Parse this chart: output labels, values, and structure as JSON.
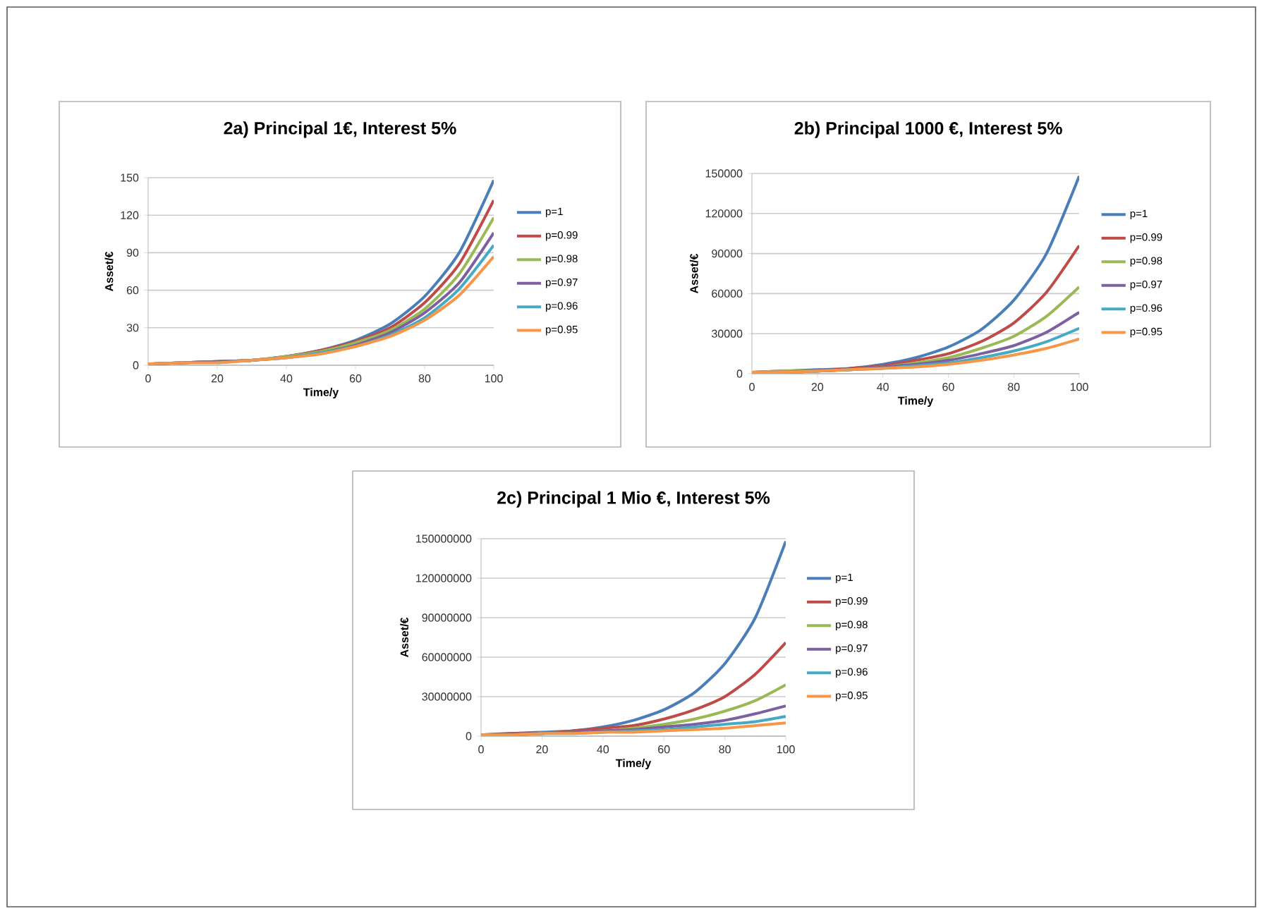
{
  "chart_data": [
    {
      "type": "line",
      "title": "2a) Principal 1€, Interest 5%",
      "xlabel": "Time/y",
      "ylabel": "Asset/€",
      "grid": "y",
      "legend": "right",
      "marker": "none",
      "line_style": "solid",
      "x": [
        0,
        10,
        20,
        30,
        40,
        50,
        60,
        70,
        80,
        90,
        100
      ],
      "xlim": [
        0,
        100
      ],
      "xticks": [
        0,
        20,
        40,
        60,
        80,
        100
      ],
      "ylim": [
        0,
        150
      ],
      "yticks": [
        0,
        30,
        60,
        90,
        120,
        150
      ],
      "series": [
        {
          "name": "p=1",
          "color": "#4a7ebb",
          "values": [
            1,
            2,
            3,
            4,
            7,
            12,
            20,
            33,
            55,
            90,
            148
          ]
        },
        {
          "name": "p=0.99",
          "color": "#be4b48",
          "values": [
            1,
            2,
            3,
            4,
            7,
            12,
            19,
            30,
            50,
            81,
            132
          ]
        },
        {
          "name": "p=0.98",
          "color": "#98b954",
          "values": [
            1,
            2,
            3,
            4,
            7,
            11,
            18,
            28,
            45,
            73,
            118
          ]
        },
        {
          "name": "p=0.97",
          "color": "#7d60a0",
          "values": [
            1,
            2,
            3,
            4,
            6,
            10,
            16,
            26,
            42,
            66,
            106
          ]
        },
        {
          "name": "p=0.96",
          "color": "#46aac5",
          "values": [
            null,
            null,
            2,
            4,
            6,
            10,
            15,
            24,
            38,
            61,
            96
          ]
        },
        {
          "name": "p=0.95",
          "color": "#f79646",
          "values": [
            1,
            2,
            2,
            4,
            6,
            9,
            15,
            23,
            36,
            56,
            87
          ]
        }
      ]
    },
    {
      "type": "line",
      "title": "2b) Principal 1000 €, Interest 5%",
      "xlabel": "Time/y",
      "ylabel": "Asset/€",
      "grid": "y",
      "legend": "right",
      "marker": "none",
      "line_style": "solid",
      "x": [
        0,
        10,
        20,
        30,
        40,
        50,
        60,
        70,
        80,
        90,
        100
      ],
      "xlim": [
        0,
        100
      ],
      "xticks": [
        0,
        20,
        40,
        60,
        80,
        100
      ],
      "ylim": [
        0,
        150000
      ],
      "yticks": [
        0,
        30000,
        60000,
        90000,
        120000,
        150000
      ],
      "series": [
        {
          "name": "p=1",
          "color": "#4a7ebb",
          "values": [
            1000,
            2000,
            3000,
            4000,
            7000,
            12000,
            20000,
            33000,
            55000,
            90000,
            148000
          ]
        },
        {
          "name": "p=0.99",
          "color": "#be4b48",
          "values": [
            1000,
            2000,
            2000,
            4000,
            6000,
            10000,
            15000,
            24000,
            38000,
            61000,
            96000
          ]
        },
        {
          "name": "p=0.98",
          "color": "#98b954",
          "values": [
            1000,
            2000,
            2000,
            3000,
            5000,
            8000,
            12000,
            19000,
            28000,
            43000,
            65000
          ]
        },
        {
          "name": "p=0.97",
          "color": "#7d60a0",
          "values": [
            1000,
            1000,
            2000,
            3000,
            5000,
            7000,
            10000,
            15000,
            21000,
            31000,
            46000
          ]
        },
        {
          "name": "p=0.96",
          "color": "#46aac5",
          "values": [
            1000,
            1000,
            2000,
            3000,
            4000,
            6000,
            8000,
            12000,
            17000,
            24000,
            34000
          ]
        },
        {
          "name": "p=0.95",
          "color": "#f79646",
          "values": [
            1000,
            1000,
            2000,
            3000,
            4000,
            5000,
            7000,
            10000,
            14000,
            19000,
            26000
          ]
        }
      ]
    },
    {
      "type": "line",
      "title": "2c) Principal 1 Mio €, Interest 5%",
      "xlabel": "Time/y",
      "ylabel": "Asset/€",
      "grid": "y",
      "legend": "right",
      "marker": "none",
      "line_style": "solid",
      "x": [
        0,
        10,
        20,
        30,
        40,
        50,
        60,
        70,
        80,
        90,
        100
      ],
      "xlim": [
        0,
        100
      ],
      "xticks": [
        0,
        20,
        40,
        60,
        80,
        100
      ],
      "ylim": [
        0,
        150000000
      ],
      "yticks": [
        0,
        30000000,
        60000000,
        90000000,
        120000000,
        150000000
      ],
      "series": [
        {
          "name": "p=1",
          "color": "#4a7ebb",
          "values": [
            1000000,
            2000000,
            3000000,
            4000000,
            7000000,
            12000000,
            20000000,
            33000000,
            55000000,
            90000000,
            148000000
          ]
        },
        {
          "name": "p=0.99",
          "color": "#be4b48",
          "values": [
            1000000,
            2000000,
            2000000,
            4000000,
            6000000,
            8000000,
            13000000,
            20000000,
            30000000,
            47000000,
            71000000
          ]
        },
        {
          "name": "p=0.98",
          "color": "#98b954",
          "values": [
            1000000,
            1000000,
            2000000,
            3000000,
            4000000,
            6000000,
            9000000,
            13000000,
            19000000,
            27000000,
            39000000
          ]
        },
        {
          "name": "p=0.97",
          "color": "#7d60a0",
          "values": [
            1000000,
            1000000,
            2000000,
            3000000,
            4000000,
            5000000,
            7000000,
            9000000,
            12000000,
            17000000,
            23000000
          ]
        },
        {
          "name": "p=0.96",
          "color": "#46aac5",
          "values": [
            1000000,
            1000000,
            2000000,
            2000000,
            3000000,
            4000000,
            5000000,
            7000000,
            9000000,
            11000000,
            15000000
          ]
        },
        {
          "name": "p=0.95",
          "color": "#f79646",
          "values": [
            1000000,
            1000000,
            2000000,
            2000000,
            3000000,
            3000000,
            4000000,
            5000000,
            6000000,
            8000000,
            10000000
          ]
        }
      ]
    }
  ]
}
